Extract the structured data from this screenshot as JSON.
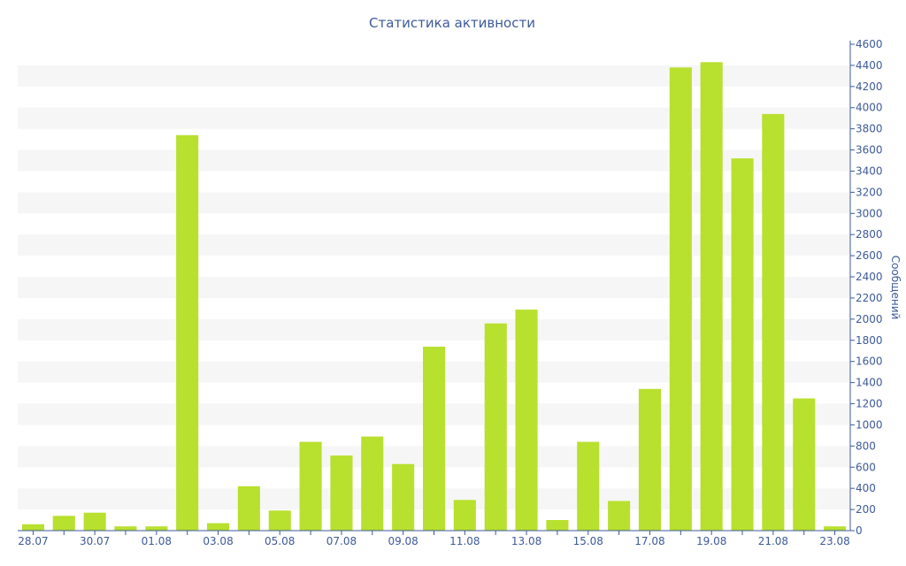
{
  "chart_data": {
    "type": "bar",
    "title": "Статистика активности",
    "ylabel": "Сообщений",
    "xlabel": "",
    "ylim": [
      0,
      4600
    ],
    "ytick_step": 200,
    "grid": "alternating horizontal bands",
    "y_axis_side": "right",
    "bar_color": "#b8e02e",
    "axis_color": "#3d5a99",
    "band_color": "#f6f6f6",
    "categories": [
      "28.07",
      "29.07",
      "30.07",
      "31.07",
      "01.08",
      "02.08",
      "03.08",
      "04.08",
      "05.08",
      "06.08",
      "07.08",
      "08.08",
      "09.08",
      "10.08",
      "11.08",
      "12.08",
      "13.08",
      "14.08",
      "15.08",
      "16.08",
      "17.08",
      "18.08",
      "19.08",
      "20.08",
      "21.08",
      "22.08",
      "23.08"
    ],
    "tick_labels": [
      "28.07",
      "",
      "30.07",
      "",
      "01.08",
      "",
      "03.08",
      "",
      "05.08",
      "",
      "07.08",
      "",
      "09.08",
      "",
      "11.08",
      "",
      "13.08",
      "",
      "15.08",
      "",
      "17.08",
      "",
      "19.08",
      "",
      "21.08",
      "",
      "23.08"
    ],
    "values": [
      60,
      140,
      170,
      40,
      40,
      3740,
      70,
      420,
      190,
      840,
      710,
      890,
      630,
      1740,
      290,
      1960,
      2090,
      100,
      840,
      280,
      1340,
      4380,
      4430,
      3520,
      3940,
      1250,
      40
    ]
  }
}
